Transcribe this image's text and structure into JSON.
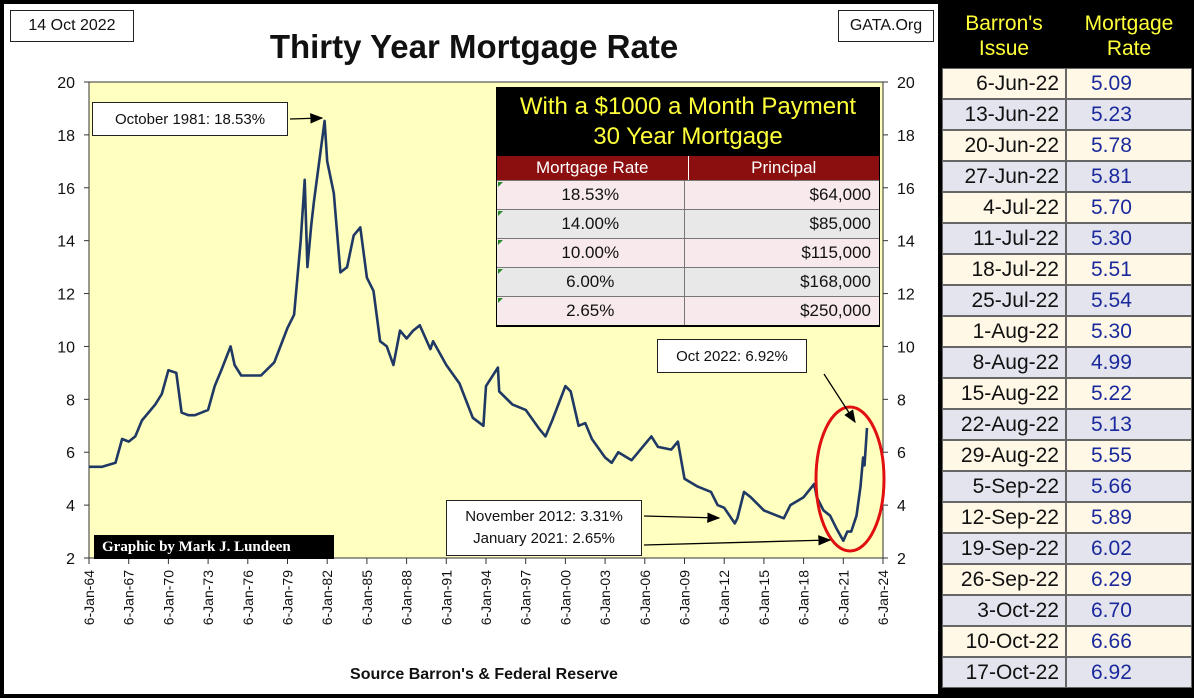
{
  "header": {
    "date": "14 Oct 2022",
    "site": "GATA.Org"
  },
  "credit": "Graphic by Mark J. Lundeen",
  "payment_table": {
    "title_line1": "With a $1000 a Month Payment",
    "title_line2": "30 Year Mortgage",
    "col_rate": "Mortgage Rate",
    "col_principal": "Principal",
    "rows": [
      {
        "rate": "18.53%",
        "principal": "$64,000"
      },
      {
        "rate": "14.00%",
        "principal": "$85,000"
      },
      {
        "rate": "10.00%",
        "principal": "$115,000"
      },
      {
        "rate": "6.00%",
        "principal": "$168,000"
      },
      {
        "rate": "2.65%",
        "principal": "$250,000"
      }
    ]
  },
  "rates_table": {
    "col_issue": "Barron's Issue",
    "col_rate": "Mortgage Rate",
    "rows": [
      {
        "issue": "6-Jun-22",
        "rate": "5.09"
      },
      {
        "issue": "13-Jun-22",
        "rate": "5.23"
      },
      {
        "issue": "20-Jun-22",
        "rate": "5.78"
      },
      {
        "issue": "27-Jun-22",
        "rate": "5.81"
      },
      {
        "issue": "4-Jul-22",
        "rate": "5.70"
      },
      {
        "issue": "11-Jul-22",
        "rate": "5.30"
      },
      {
        "issue": "18-Jul-22",
        "rate": "5.51"
      },
      {
        "issue": "25-Jul-22",
        "rate": "5.54"
      },
      {
        "issue": "1-Aug-22",
        "rate": "5.30"
      },
      {
        "issue": "8-Aug-22",
        "rate": "4.99"
      },
      {
        "issue": "15-Aug-22",
        "rate": "5.22"
      },
      {
        "issue": "22-Aug-22",
        "rate": "5.13"
      },
      {
        "issue": "29-Aug-22",
        "rate": "5.55"
      },
      {
        "issue": "5-Sep-22",
        "rate": "5.66"
      },
      {
        "issue": "12-Sep-22",
        "rate": "5.89"
      },
      {
        "issue": "19-Sep-22",
        "rate": "6.02"
      },
      {
        "issue": "26-Sep-22",
        "rate": "6.29"
      },
      {
        "issue": "3-Oct-22",
        "rate": "6.70"
      },
      {
        "issue": "10-Oct-22",
        "rate": "6.66"
      },
      {
        "issue": "17-Oct-22",
        "rate": "6.92"
      }
    ]
  },
  "colors": {
    "plot_bg": "#ffffc0",
    "line": "#1f3864",
    "circle": "#e01010",
    "table_header_text": "#ffff3a",
    "table_col_header": "#8b0f0f",
    "rate_value_text": "#1a2a9c"
  },
  "chart_data": {
    "type": "line",
    "title": "Thirty Year Mortgage Rate",
    "xlabel": "Source Barron's & Federal Reserve",
    "ylabel": "",
    "ylim": [
      2,
      20
    ],
    "xlim": [
      1964,
      2024
    ],
    "yticks": [
      2,
      4,
      6,
      8,
      10,
      12,
      14,
      16,
      18,
      20
    ],
    "xticks": [
      {
        "label": "6-Jan-64",
        "x": 1964
      },
      {
        "label": "6-Jan-67",
        "x": 1967
      },
      {
        "label": "6-Jan-70",
        "x": 1970
      },
      {
        "label": "6-Jan-73",
        "x": 1973
      },
      {
        "label": "6-Jan-76",
        "x": 1976
      },
      {
        "label": "6-Jan-79",
        "x": 1979
      },
      {
        "label": "6-Jan-82",
        "x": 1982
      },
      {
        "label": "6-Jan-85",
        "x": 1985
      },
      {
        "label": "6-Jan-88",
        "x": 1988
      },
      {
        "label": "6-Jan-91",
        "x": 1991
      },
      {
        "label": "6-Jan-94",
        "x": 1994
      },
      {
        "label": "6-Jan-97",
        "x": 1997
      },
      {
        "label": "6-Jan-00",
        "x": 2000
      },
      {
        "label": "6-Jan-03",
        "x": 2003
      },
      {
        "label": "6-Jan-06",
        "x": 2006
      },
      {
        "label": "6-Jan-09",
        "x": 2009
      },
      {
        "label": "6-Jan-12",
        "x": 2012
      },
      {
        "label": "6-Jan-15",
        "x": 2015
      },
      {
        "label": "6-Jan-18",
        "x": 2018
      },
      {
        "label": "6-Jan-21",
        "x": 2021
      },
      {
        "label": "6-Jan-24",
        "x": 2024
      }
    ],
    "grid": false,
    "legend": "none",
    "series": [
      {
        "x": [
          1964,
          1965,
          1966,
          1966.5,
          1967,
          1967.5,
          1968,
          1969,
          1969.5,
          1970,
          1970.6,
          1971,
          1971.5,
          1972,
          1973,
          1973.5,
          1974,
          1974.7,
          1975,
          1975.5,
          1976,
          1977,
          1978,
          1979,
          1979.5,
          1980,
          1980.3,
          1980.5,
          1980.8,
          1981,
          1981.8,
          1982,
          1982.5,
          1983,
          1983.5,
          1984,
          1984.5,
          1985,
          1985.5,
          1986,
          1986.5,
          1987,
          1987.5,
          1988,
          1988.5,
          1989,
          1989.8,
          1990,
          1991,
          1992,
          1993,
          1993.8,
          1994,
          1994.9,
          1995,
          1996,
          1997,
          1998,
          1998.5,
          1999,
          2000,
          2000.4,
          2001,
          2001.5,
          2002,
          2003,
          2003.5,
          2004,
          2005,
          2006,
          2006.5,
          2007,
          2008,
          2008.5,
          2009,
          2010,
          2011,
          2011.5,
          2012,
          2012.8,
          2013,
          2013.5,
          2014,
          2015,
          2016,
          2016.5,
          2017,
          2018,
          2018.8,
          2019,
          2019.5,
          2020,
          2020.5,
          2021,
          2021.3,
          2021.6,
          2022,
          2022.3,
          2022.5,
          2022.6,
          2022.79
        ],
        "values": [
          5.45,
          5.45,
          5.6,
          6.5,
          6.4,
          6.6,
          7.2,
          7.8,
          8.2,
          9.1,
          9.0,
          7.5,
          7.4,
          7.4,
          7.6,
          8.5,
          9.1,
          10.0,
          9.3,
          8.9,
          8.9,
          8.9,
          9.4,
          10.7,
          11.2,
          14.0,
          16.3,
          13.0,
          14.6,
          15.5,
          18.53,
          17.0,
          15.8,
          12.8,
          13.0,
          14.2,
          14.5,
          12.6,
          12.1,
          10.2,
          10.0,
          9.3,
          10.6,
          10.3,
          10.6,
          10.8,
          9.9,
          10.2,
          9.3,
          8.6,
          7.3,
          7.0,
          8.5,
          9.2,
          8.3,
          7.8,
          7.6,
          6.9,
          6.6,
          7.2,
          8.5,
          8.3,
          7.0,
          7.1,
          6.5,
          5.8,
          5.6,
          6.0,
          5.7,
          6.3,
          6.6,
          6.2,
          6.1,
          6.4,
          5.0,
          4.7,
          4.5,
          4.0,
          3.9,
          3.31,
          3.5,
          4.5,
          4.3,
          3.8,
          3.6,
          3.5,
          4.0,
          4.3,
          4.8,
          4.3,
          3.8,
          3.6,
          3.1,
          2.65,
          3.0,
          3.0,
          3.6,
          4.7,
          5.8,
          5.5,
          6.92
        ]
      }
    ],
    "annotations": [
      "October 1981: 18.53%",
      "Oct 2022: 6.92%",
      "November 2012: 3.31%",
      "January 2021: 2.65%"
    ]
  }
}
